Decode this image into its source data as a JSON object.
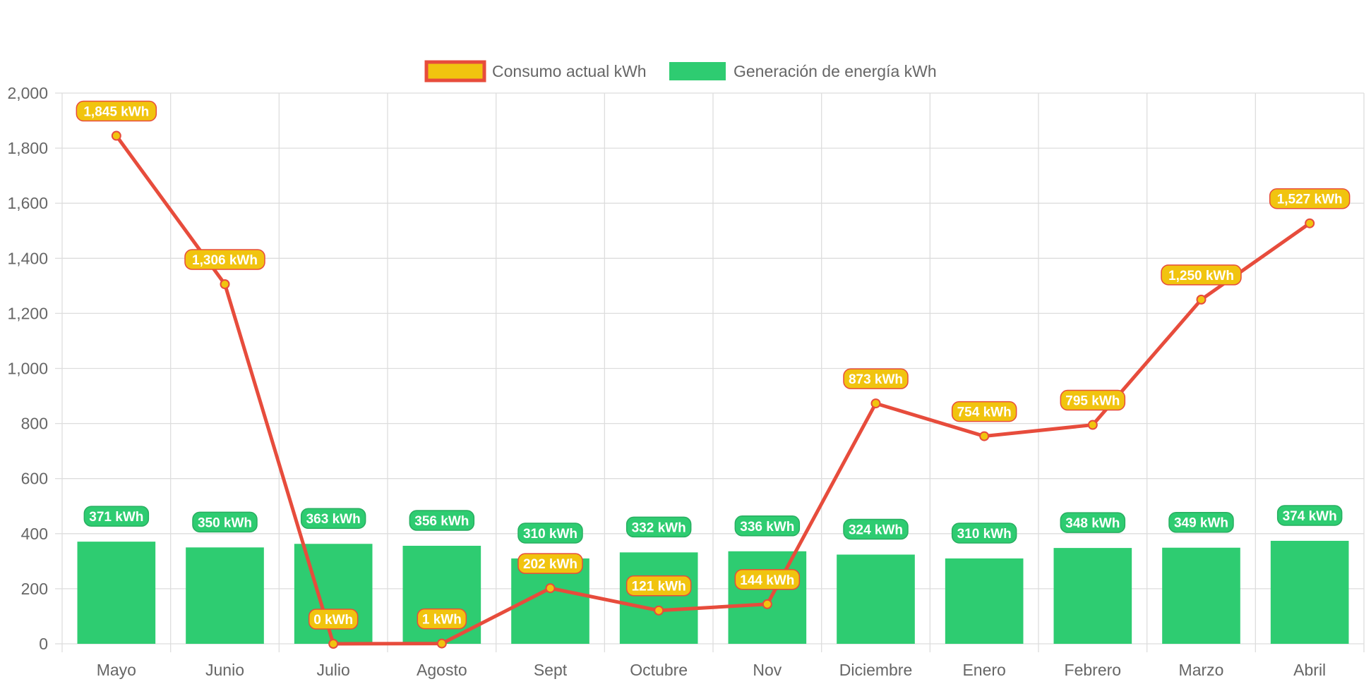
{
  "chart_data": {
    "type": "bar",
    "categories": [
      "Mayo",
      "Junio",
      "Julio",
      "Agosto",
      "Sept",
      "Octubre",
      "Nov",
      "Diciembre",
      "Enero",
      "Febrero",
      "Marzo",
      "Abril"
    ],
    "ylim": [
      0,
      2000
    ],
    "yticks": [
      0,
      200,
      400,
      600,
      800,
      1000,
      1200,
      1400,
      1600,
      1800,
      2000
    ],
    "ytick_labels": [
      "0",
      "200",
      "400",
      "600",
      "800",
      "1,000",
      "1,200",
      "1,400",
      "1,600",
      "1,800",
      "2,000"
    ],
    "grid": true,
    "legend_position": "top-center",
    "series": [
      {
        "name": "Consumo actual kWh",
        "type": "line",
        "values": [
          1845,
          1306,
          0,
          1,
          202,
          121,
          144,
          873,
          754,
          795,
          1250,
          1527
        ],
        "labels": [
          "1,845 kWh",
          "1,306 kWh",
          "0 kWh",
          "1 kWh",
          "202 kWh",
          "121 kWh",
          "144 kWh",
          "873 kWh",
          "754 kWh",
          "795 kWh",
          "1,250 kWh",
          "1,527 kWh"
        ],
        "line_color": "#e74c3c",
        "point_color": "#f1c40f"
      },
      {
        "name": "Generación de energía kWh",
        "type": "bar",
        "values": [
          371,
          350,
          363,
          356,
          310,
          332,
          336,
          324,
          310,
          348,
          349,
          374
        ],
        "labels": [
          "371 kWh",
          "350 kWh",
          "363 kWh",
          "356 kWh",
          "310 kWh",
          "332 kWh",
          "336 kWh",
          "324 kWh",
          "310 kWh",
          "348 kWh",
          "349 kWh",
          "374 kWh"
        ],
        "color": "#2ecc71"
      }
    ]
  }
}
